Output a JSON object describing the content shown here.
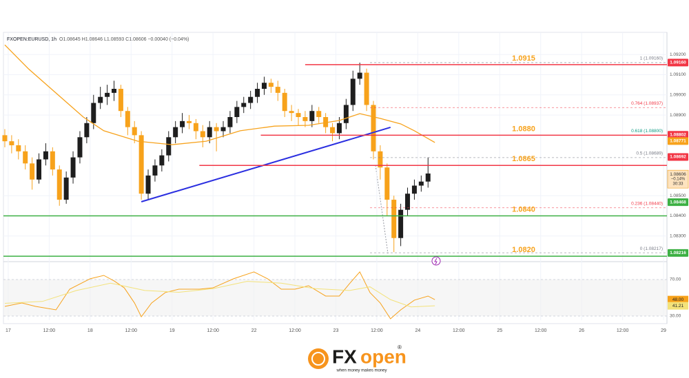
{
  "chart_data": [
    {
      "type": "candlestick",
      "title": "FXOPEN:EURUSD, 1h",
      "legend_text": "O1.08645 H1.08646 L1.08593 C1.08606 −0.00040 (−0.04%)",
      "up_color": "#1e1e1e",
      "down_color": "#f7a21b",
      "xlim": [
        -1.4,
        193
      ],
      "ylim": [
        1.0819,
        1.0931
      ],
      "xticks": [
        {
          "value": 0,
          "label": "17"
        },
        {
          "value": 12,
          "label": "12:00"
        },
        {
          "value": 24,
          "label": "18"
        },
        {
          "value": 36,
          "label": "12:00"
        },
        {
          "value": 48,
          "label": "19"
        },
        {
          "value": 60,
          "label": "12:00"
        },
        {
          "value": 72,
          "label": "22"
        },
        {
          "value": 84,
          "label": "12:00"
        },
        {
          "value": 96,
          "label": "23"
        },
        {
          "value": 108,
          "label": "12:00"
        },
        {
          "value": 120,
          "label": "24"
        },
        {
          "value": 132,
          "label": "12:00"
        },
        {
          "value": 144,
          "label": "25"
        },
        {
          "value": 156,
          "label": "12:00"
        },
        {
          "value": 168,
          "label": "26"
        },
        {
          "value": 180,
          "label": "12:00"
        },
        {
          "value": 192,
          "label": "29"
        }
      ],
      "yticks": [
        {
          "value": 1.092,
          "label": "1.09200"
        },
        {
          "value": 1.091,
          "label": "1.09100"
        },
        {
          "value": 1.09,
          "label": "1.09000"
        },
        {
          "value": 1.089,
          "label": "1.08900"
        },
        {
          "value": 1.085,
          "label": "1.08500"
        },
        {
          "value": 1.084,
          "label": "1.08400"
        },
        {
          "value": 1.083,
          "label": "1.08300"
        }
      ],
      "grid": true,
      "x": [
        -1,
        1,
        3,
        5,
        7,
        9,
        11,
        13,
        15,
        17,
        19,
        21,
        23,
        25,
        27,
        29,
        31,
        33,
        35,
        37,
        39,
        41,
        43,
        45,
        47,
        49,
        51,
        53,
        55,
        57,
        59,
        61,
        63,
        65,
        67,
        69,
        71,
        73,
        75,
        77,
        79,
        81,
        83,
        85,
        87,
        89,
        91,
        93,
        95,
        97,
        99,
        101,
        103,
        105,
        107,
        109,
        111,
        113,
        115,
        117,
        119,
        121,
        123
      ],
      "open": [
        1.088,
        1.0877,
        1.0875,
        1.0872,
        1.0866,
        1.0858,
        1.0868,
        1.0872,
        1.0863,
        1.0848,
        1.0859,
        1.0869,
        1.0879,
        1.0886,
        1.0896,
        1.0899,
        1.0901,
        1.0903,
        1.0892,
        1.0884,
        1.088,
        1.0851,
        1.086,
        1.0865,
        1.087,
        1.0879,
        1.0884,
        1.0887,
        1.0886,
        1.0882,
        1.0879,
        1.0884,
        1.0882,
        1.0884,
        1.0889,
        1.0894,
        1.0896,
        1.0899,
        1.0903,
        1.0906,
        1.0904,
        1.0901,
        1.0892,
        1.0891,
        1.0889,
        1.0887,
        1.0892,
        1.0889,
        1.0884,
        1.0881,
        1.0886,
        1.0895,
        1.0908,
        1.0911,
        1.0895,
        1.0872,
        1.0864,
        1.0848,
        1.0829,
        1.0843,
        1.0851,
        1.0855,
        1.0857
      ],
      "high": [
        1.0883,
        1.088,
        1.0878,
        1.0875,
        1.0869,
        1.0871,
        1.0876,
        1.0874,
        1.0865,
        1.0862,
        1.0872,
        1.0882,
        1.0889,
        1.09,
        1.0904,
        1.0905,
        1.0907,
        1.0905,
        1.0894,
        1.0887,
        1.0882,
        1.0863,
        1.0868,
        1.0873,
        1.0882,
        1.0887,
        1.0891,
        1.089,
        1.0888,
        1.0885,
        1.0887,
        1.0886,
        1.0887,
        1.0892,
        1.0897,
        1.0899,
        1.0902,
        1.0906,
        1.0909,
        1.0908,
        1.0907,
        1.0903,
        1.0895,
        1.0893,
        1.0892,
        1.0895,
        1.0894,
        1.0891,
        1.0886,
        1.0889,
        1.0898,
        1.0912,
        1.0916,
        1.0913,
        1.0897,
        1.0875,
        1.0866,
        1.085,
        1.0846,
        1.0854,
        1.0858,
        1.086,
        1.0869
      ],
      "low": [
        1.0874,
        1.0871,
        1.0868,
        1.0863,
        1.0853,
        1.0856,
        1.0865,
        1.086,
        1.0845,
        1.0846,
        1.0856,
        1.0866,
        1.0876,
        1.0883,
        1.0893,
        1.0895,
        1.0897,
        1.0889,
        1.088,
        1.0876,
        1.0848,
        1.0848,
        1.0857,
        1.0862,
        1.0867,
        1.0876,
        1.0881,
        1.0883,
        1.0878,
        1.0874,
        1.0876,
        1.0872,
        1.0879,
        1.0881,
        1.0886,
        1.0891,
        1.0893,
        1.0896,
        1.09,
        1.0901,
        1.0897,
        1.0889,
        1.0887,
        1.0885,
        1.0884,
        1.0884,
        1.0886,
        1.0881,
        1.0877,
        1.0878,
        1.0883,
        1.0892,
        1.0905,
        1.0892,
        1.0868,
        1.0858,
        1.084,
        1.0822,
        1.0825,
        1.084,
        1.0848,
        1.0852,
        1.0854
      ],
      "close": [
        1.0877,
        1.0875,
        1.0872,
        1.0866,
        1.0858,
        1.0868,
        1.0872,
        1.0863,
        1.0848,
        1.0859,
        1.0869,
        1.0879,
        1.0886,
        1.0896,
        1.0899,
        1.0901,
        1.0903,
        1.0892,
        1.0884,
        1.088,
        1.0851,
        1.086,
        1.0865,
        1.087,
        1.0879,
        1.0884,
        1.0887,
        1.0886,
        1.0882,
        1.0879,
        1.0884,
        1.0882,
        1.0884,
        1.0889,
        1.0894,
        1.0896,
        1.0899,
        1.0903,
        1.0906,
        1.0904,
        1.0901,
        1.0892,
        1.0891,
        1.0889,
        1.0887,
        1.0892,
        1.0889,
        1.0884,
        1.0881,
        1.0886,
        1.0895,
        1.0908,
        1.0911,
        1.0895,
        1.0872,
        1.0864,
        1.0848,
        1.0829,
        1.0843,
        1.0851,
        1.0855,
        1.0857,
        1.0861
      ],
      "ma": {
        "color": "#f7a21b",
        "x": [
          -1,
          6,
          14,
          22,
          28,
          38,
          48,
          58,
          68,
          78,
          88,
          97,
          103,
          109,
          115,
          119,
          125
        ],
        "values": [
          1.09248,
          1.09128,
          1.09009,
          1.0889,
          1.08822,
          1.0877,
          1.08753,
          1.0877,
          1.08822,
          1.08845,
          1.08849,
          1.08873,
          1.08907,
          1.08883,
          1.08856,
          1.08822,
          1.08764
        ]
      },
      "trendline": {
        "color": "#2a2ee0",
        "x": [
          39,
          112
        ],
        "values": [
          1.0847,
          1.08839
        ]
      },
      "levels": [
        {
          "label": "1.0915",
          "value": 1.0915,
          "from": 87,
          "color": "#f23645"
        },
        {
          "label": "1.0880",
          "value": 1.088,
          "from": 74,
          "color": "#f23645"
        },
        {
          "label": "1.0865",
          "value": 1.0865,
          "from": 56,
          "color": "#f23645"
        },
        {
          "label": "1.0840",
          "value": 1.084,
          "from": -1.4,
          "color": "#3cb043"
        },
        {
          "label": "1.0820",
          "value": 1.082,
          "from": -1.4,
          "color": "#3cb043"
        }
      ],
      "level_label_color": "#f7a21b",
      "fib": [
        {
          "label": "1 (1.09160)",
          "value": 1.0916,
          "color": "#787b86"
        },
        {
          "label": "0.764 (1.08937)",
          "value": 1.08937,
          "color": "#f23645"
        },
        {
          "label": "0.618 (1.08800)",
          "value": 1.088,
          "color": "#089981"
        },
        {
          "label": "0.5 (1.08689)",
          "value": 1.08689,
          "color": "#787b86"
        },
        {
          "label": "0.236 (1.08440)",
          "value": 1.0844,
          "color": "#f23645"
        },
        {
          "label": "0 (1.08217)",
          "value": 1.08217,
          "color": "#787b86"
        }
      ],
      "fib_from": 106,
      "price_tags": [
        {
          "value": 1.0916,
          "label": "1.09160",
          "color": "#f23645"
        },
        {
          "value": 1.08802,
          "label": "1.08802",
          "color": "#f23645"
        },
        {
          "value": 1.08771,
          "label": "1.08771",
          "color": "#f7a21b"
        },
        {
          "value": 1.08692,
          "label": "1.08692",
          "color": "#f23645"
        },
        {
          "value": 1.08468,
          "label": "1.08468",
          "color": "#3cb043"
        },
        {
          "value": 1.08216,
          "label": "1.08216",
          "color": "#3cb043"
        }
      ],
      "last_tag": {
        "value": 1.08606,
        "label": "1.08606",
        "change": "−0.14%",
        "countdown": "30:33",
        "color": "#f7a21b"
      }
    },
    {
      "type": "line",
      "xlim": [
        -1.4,
        193
      ],
      "ylim": [
        25.5,
        85.8
      ],
      "yticks": [
        {
          "value": 70,
          "label": "70.00"
        },
        {
          "value": 30,
          "label": "30.00"
        }
      ],
      "band": [
        30,
        70
      ],
      "series": [
        {
          "color": "#f7a21b",
          "x": [
            -1,
            4,
            8,
            14,
            18,
            24,
            28,
            31,
            34,
            37,
            39,
            42,
            46,
            50,
            56,
            60,
            66,
            72,
            76,
            80,
            84,
            88,
            93,
            97,
            100,
            103,
            106,
            109,
            112,
            115,
            119,
            123,
            125
          ],
          "values": [
            40.6,
            44.3,
            40.6,
            36.8,
            59.4,
            70.8,
            74.5,
            68.5,
            60.9,
            44.3,
            29.2,
            44.3,
            55.7,
            59.4,
            59.4,
            60.9,
            70.8,
            78.3,
            70.8,
            59.4,
            59.4,
            63.2,
            51.9,
            51.9,
            65.5,
            78.3,
            55.7,
            44.3,
            27.0,
            36.8,
            47.4,
            51.9,
            48.0
          ]
        },
        {
          "color": "#f3e27a",
          "x": [
            -1,
            10,
            20,
            30,
            40,
            50,
            60,
            70,
            80,
            90,
            100,
            106,
            112,
            118,
            125
          ],
          "values": [
            44,
            46,
            58,
            66,
            58,
            56,
            60,
            68,
            66,
            60,
            58,
            62,
            48,
            40,
            41.21
          ]
        }
      ],
      "tags": [
        {
          "value": 48,
          "label": "48.00",
          "color": "#f7a21b"
        },
        {
          "value": 41.21,
          "label": "41.21",
          "color": "#f3e27a"
        }
      ]
    }
  ],
  "logo": {
    "brand_a": "FX",
    "brand_b": "open",
    "mark": "®",
    "tagline": "when money makes money"
  }
}
